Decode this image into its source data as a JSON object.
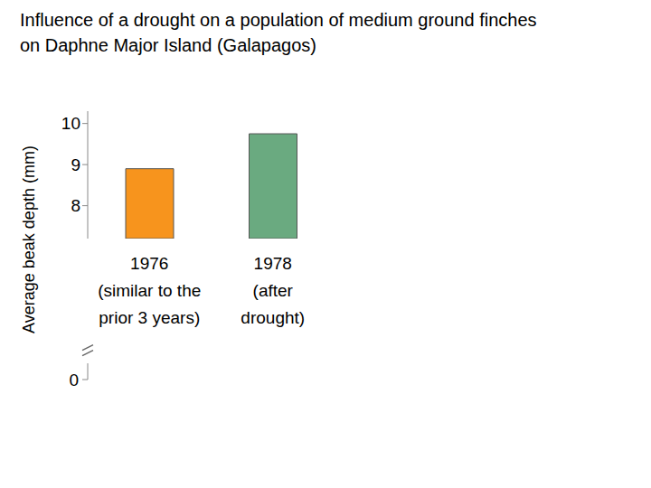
{
  "chart_data": {
    "type": "bar",
    "title": "Influence of a drought on a population of medium ground finches\non Daphne Major Island (Galapagos)",
    "y_label": "Average beak depth (mm)",
    "categories": [
      "1976\n(similar to the\nprior 3 years)",
      "1978\n(after\ndrought)"
    ],
    "values": [
      8.9,
      9.75
    ],
    "colors": [
      "#f7941d",
      "#6aaa80"
    ],
    "ylim": [
      7.2,
      10.3
    ],
    "yticks": [
      8,
      9,
      10
    ],
    "axis_break": {
      "value": 0,
      "label": "0"
    },
    "grid": false
  }
}
